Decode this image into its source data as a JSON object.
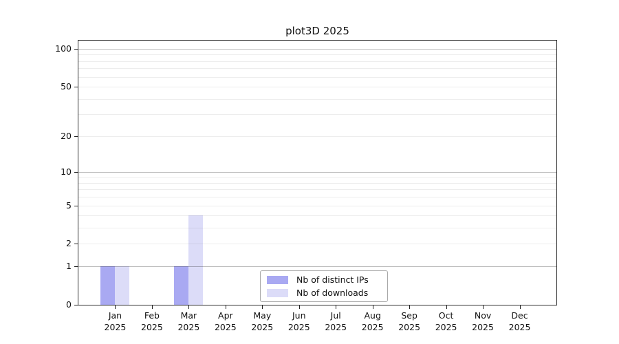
{
  "chart_data": {
    "type": "bar",
    "title": "plot3D 2025",
    "categories": [
      "Jan",
      "Feb",
      "Mar",
      "Apr",
      "May",
      "Jun",
      "Jul",
      "Aug",
      "Sep",
      "Oct",
      "Nov",
      "Dec"
    ],
    "year_label": "2025",
    "series": [
      {
        "name": "Nb of distinct IPs",
        "color": "#a9a9f2",
        "values": [
          1,
          0,
          1,
          0,
          0,
          0,
          0,
          0,
          0,
          0,
          0,
          0
        ]
      },
      {
        "name": "Nb of downloads",
        "color": "#dcdcf8",
        "values": [
          1,
          0,
          4,
          0,
          0,
          0,
          0,
          0,
          0,
          0,
          0,
          0
        ]
      }
    ],
    "y_axis": {
      "scale": "log10(1+y)",
      "tick_values": [
        0,
        1,
        2,
        5,
        10,
        20,
        50,
        100
      ],
      "tick_labels": [
        "0",
        "1",
        "2",
        "5",
        "10",
        "20",
        "50",
        "100"
      ],
      "range": [
        0,
        117
      ],
      "major_gridlines": [
        1,
        10,
        100
      ],
      "minor_gridlines": [
        2,
        3,
        4,
        5,
        6,
        7,
        8,
        9,
        20,
        30,
        40,
        50,
        60,
        70,
        80,
        90
      ]
    },
    "grid": true,
    "legend_position": "lower center inside plot"
  }
}
